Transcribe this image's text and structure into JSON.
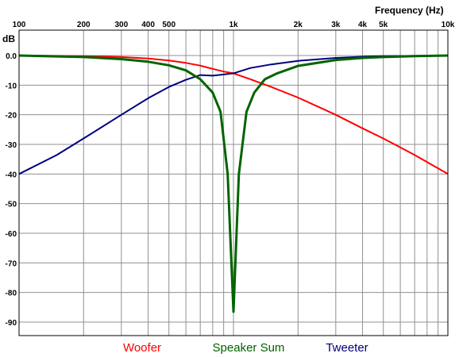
{
  "chart_data": {
    "type": "line",
    "xlabel": "Frequency  (Hz)",
    "ylabel": "dB",
    "xscale": "log",
    "xlim": [
      100,
      10000
    ],
    "ylim": [
      -95,
      5
    ],
    "grid": true,
    "legend_placement": "bottom",
    "x_ticks": [
      {
        "value": 100,
        "label": "100"
      },
      {
        "value": 200,
        "label": "200"
      },
      {
        "value": 300,
        "label": "300"
      },
      {
        "value": 400,
        "label": "400"
      },
      {
        "value": 500,
        "label": "500"
      },
      {
        "value": 1000,
        "label": "1k"
      },
      {
        "value": 2000,
        "label": "2k"
      },
      {
        "value": 3000,
        "label": "3k"
      },
      {
        "value": 4000,
        "label": "4k"
      },
      {
        "value": 5000,
        "label": "5k"
      },
      {
        "value": 10000,
        "label": "10k"
      }
    ],
    "y_ticks": [
      {
        "value": 0,
        "label": "0.0"
      },
      {
        "value": -10,
        "label": "-10"
      },
      {
        "value": -20,
        "label": "-20"
      },
      {
        "value": -30,
        "label": "-30"
      },
      {
        "value": -40,
        "label": "-40"
      },
      {
        "value": -50,
        "label": "-50"
      },
      {
        "value": -60,
        "label": "-60"
      },
      {
        "value": -70,
        "label": "-70"
      },
      {
        "value": -80,
        "label": "-80"
      },
      {
        "value": -90,
        "label": "-90"
      }
    ],
    "series": [
      {
        "name": "Woofer",
        "color": "#ff0000",
        "x": [
          100,
          150,
          200,
          300,
          400,
          500,
          600,
          700,
          800,
          900,
          1000,
          1200,
          1500,
          2000,
          3000,
          4000,
          5000,
          7000,
          10000
        ],
        "y": [
          0,
          -0.1,
          -0.2,
          -0.5,
          -1.0,
          -1.7,
          -2.5,
          -3.4,
          -4.5,
          -5.4,
          -6.0,
          -8.0,
          -10.6,
          -14.2,
          -20.0,
          -24.6,
          -28.0,
          -33.6,
          -40.0
        ]
      },
      {
        "name": "Tweeter",
        "color": "#000080",
        "x": [
          100,
          150,
          200,
          300,
          400,
          500,
          600,
          700,
          800,
          900,
          1000,
          1200,
          1500,
          2000,
          3000,
          4000,
          5000,
          7000,
          10000
        ],
        "y": [
          -40.0,
          -33.6,
          -28.0,
          -20.0,
          -14.4,
          -10.6,
          -8.2,
          -6.6,
          -6.8,
          -6.4,
          -6.0,
          -4.2,
          -3.0,
          -1.8,
          -0.8,
          -0.4,
          -0.2,
          -0.1,
          0
        ]
      },
      {
        "name": "Speaker Sum",
        "color": "#006400",
        "x": [
          100,
          150,
          200,
          300,
          400,
          500,
          600,
          700,
          800,
          870,
          940,
          1000,
          1060,
          1150,
          1250,
          1400,
          1600,
          2000,
          3000,
          4000,
          5000,
          7000,
          10000
        ],
        "y": [
          0,
          -0.3,
          -0.5,
          -1.2,
          -2.1,
          -3.3,
          -5.0,
          -8.0,
          -12.5,
          -19.0,
          -40.0,
          -86.5,
          -40.0,
          -19.0,
          -12.5,
          -8.0,
          -6.0,
          -3.5,
          -1.5,
          -0.8,
          -0.5,
          -0.2,
          0
        ]
      }
    ]
  }
}
